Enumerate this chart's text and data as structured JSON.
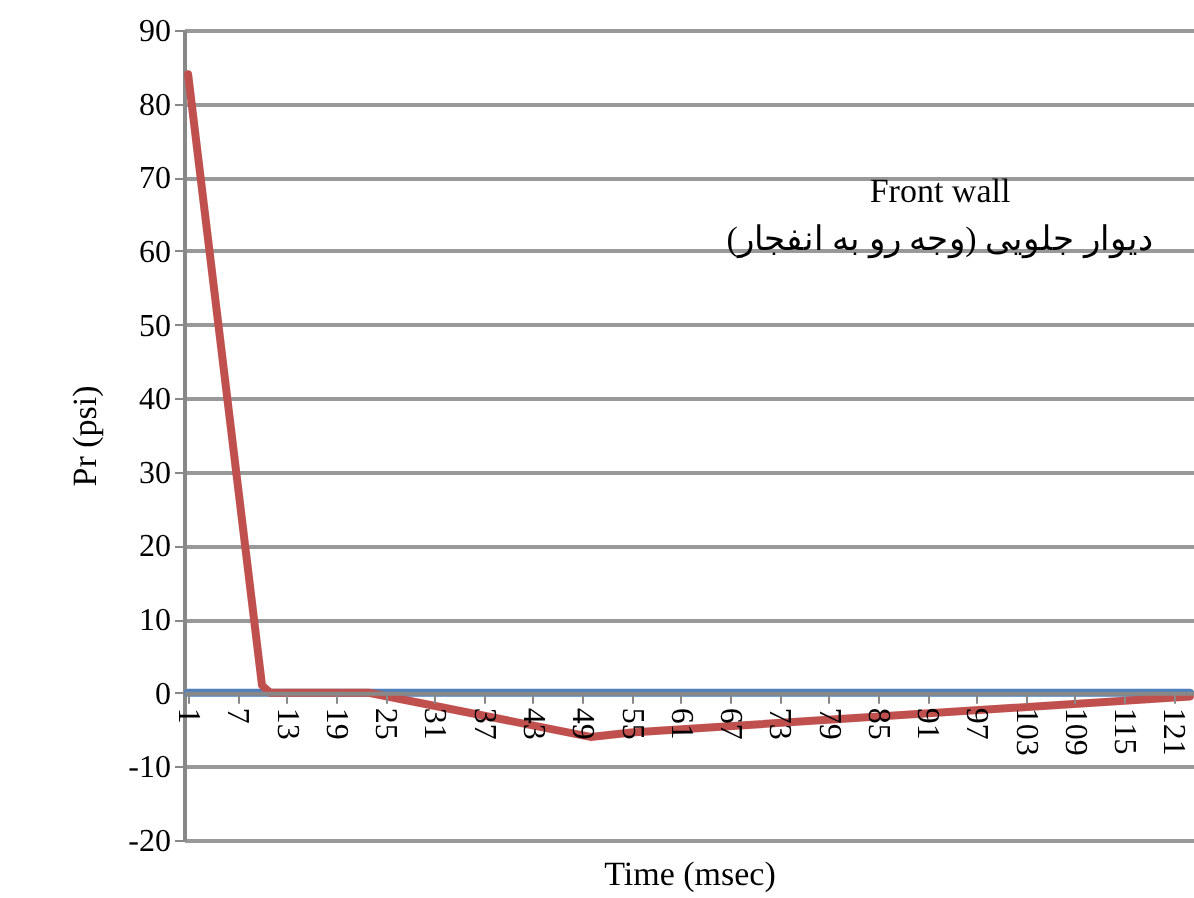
{
  "chart_data": {
    "type": "line",
    "xlabel": "Time (msec)",
    "ylabel": "Pr (psi)",
    "annotations": [
      "Front wall",
      "دیوار جلویی (وجه رو به انفجار)"
    ],
    "xlim": [
      0.5,
      123.5
    ],
    "xticks": [
      1,
      7,
      13,
      19,
      25,
      31,
      37,
      43,
      49,
      55,
      61,
      67,
      73,
      79,
      85,
      91,
      97,
      103,
      109,
      115,
      121
    ],
    "ylim": [
      -20,
      90
    ],
    "yticks": [
      -20,
      -10,
      0,
      10,
      20,
      30,
      40,
      50,
      60,
      70,
      80,
      90
    ],
    "grid": "y",
    "series": [
      {
        "color": "#4f81bd",
        "x": [
          1,
          123
        ],
        "values": [
          0,
          0
        ]
      },
      {
        "color": "#c0504d",
        "x": [
          1,
          10,
          11,
          23,
          50,
          55,
          123
        ],
        "values": [
          84,
          1,
          0,
          0,
          -6,
          -5.4,
          -0.5
        ]
      }
    ]
  }
}
